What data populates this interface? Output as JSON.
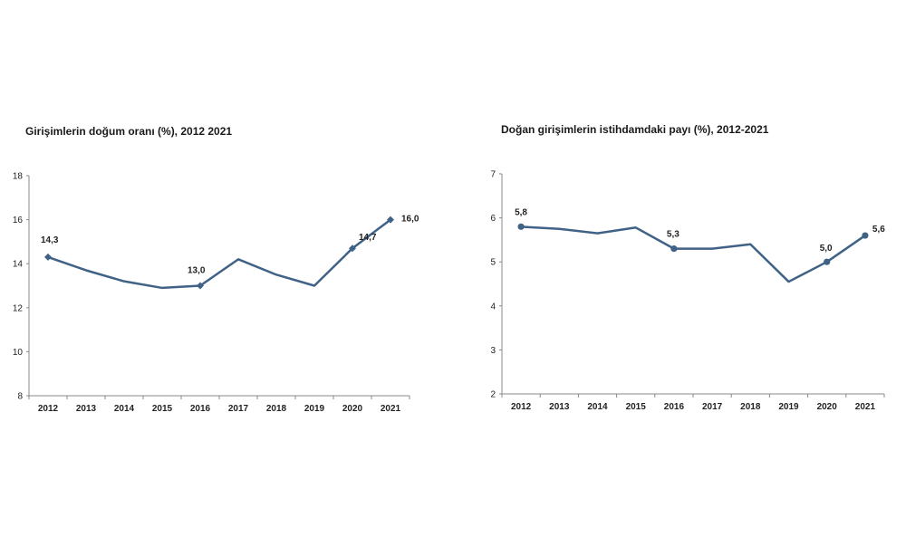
{
  "chart_data": [
    {
      "type": "line",
      "title": "Girişimlerin doğum oranı (%), 2012 2021",
      "x": [
        "2012",
        "2013",
        "2014",
        "2015",
        "2016",
        "2017",
        "2018",
        "2019",
        "2020",
        "2021"
      ],
      "values": [
        14.3,
        13.7,
        13.2,
        12.9,
        13.0,
        14.2,
        13.5,
        13.0,
        14.7,
        16.0
      ],
      "yticks": [
        "8",
        "10",
        "12",
        "14",
        "16",
        "18"
      ],
      "ylim": [
        8,
        18
      ],
      "data_labels": [
        {
          "index": 0,
          "text": "14,3"
        },
        {
          "index": 4,
          "text": "13,0"
        },
        {
          "index": 8,
          "text": "14,7"
        },
        {
          "index": 9,
          "text": "16,0"
        }
      ],
      "line_color": "#3f6286"
    },
    {
      "type": "line",
      "title": "Doğan girişimlerin istihdamdaki payı (%), 2012-2021",
      "x": [
        "2012",
        "2013",
        "2014",
        "2015",
        "2016",
        "2017",
        "2018",
        "2019",
        "2020",
        "2021"
      ],
      "values": [
        5.8,
        5.75,
        5.65,
        5.78,
        5.3,
        5.3,
        5.4,
        4.55,
        5.0,
        5.6
      ],
      "yticks": [
        "2",
        "3",
        "4",
        "5",
        "6",
        "7"
      ],
      "ylim": [
        2,
        7
      ],
      "data_labels": [
        {
          "index": 0,
          "text": "5,8"
        },
        {
          "index": 4,
          "text": "5,3"
        },
        {
          "index": 8,
          "text": "5,0"
        },
        {
          "index": 9,
          "text": "5,6"
        }
      ],
      "line_color": "#3f6286"
    }
  ]
}
